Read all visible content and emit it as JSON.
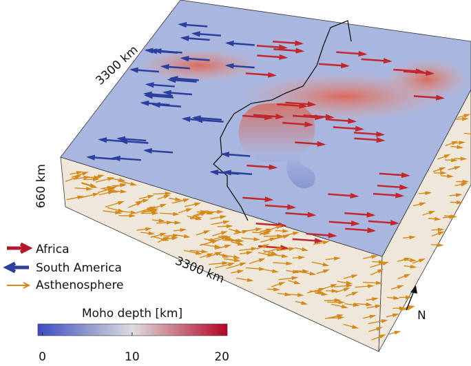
{
  "labels": {
    "top_left_edge": "3300 km",
    "depth_edge": "660 km",
    "front_edge": "3300 km",
    "north": "N"
  },
  "legend": [
    "Africa",
    "South America",
    "Asthenosphere"
  ],
  "colorbar": {
    "title": "Moho depth [km]",
    "lim": [
      -0.5,
      20.6
    ],
    "ticks": [
      0,
      10,
      20
    ]
  }
}
